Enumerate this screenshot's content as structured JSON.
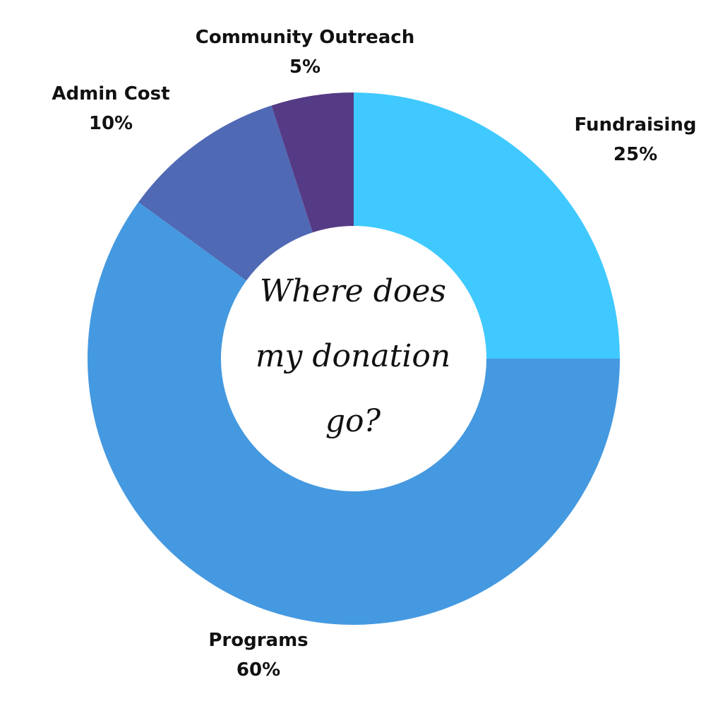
{
  "chart_data": {
    "type": "pie",
    "title": "Where does my donation go?",
    "categories": [
      "Fundraising",
      "Programs",
      "Admin Cost",
      "Community Outreach"
    ],
    "values": [
      25,
      60,
      10,
      5
    ],
    "value_labels": [
      "25%",
      "60%",
      "10%",
      "5%"
    ],
    "colors": [
      "#40C9FF",
      "#4599E0",
      "#5069B5",
      "#553A85"
    ],
    "donut": true,
    "start": "12 o'clock",
    "direction": "clockwise",
    "legend": "none (labels next to segments)"
  }
}
